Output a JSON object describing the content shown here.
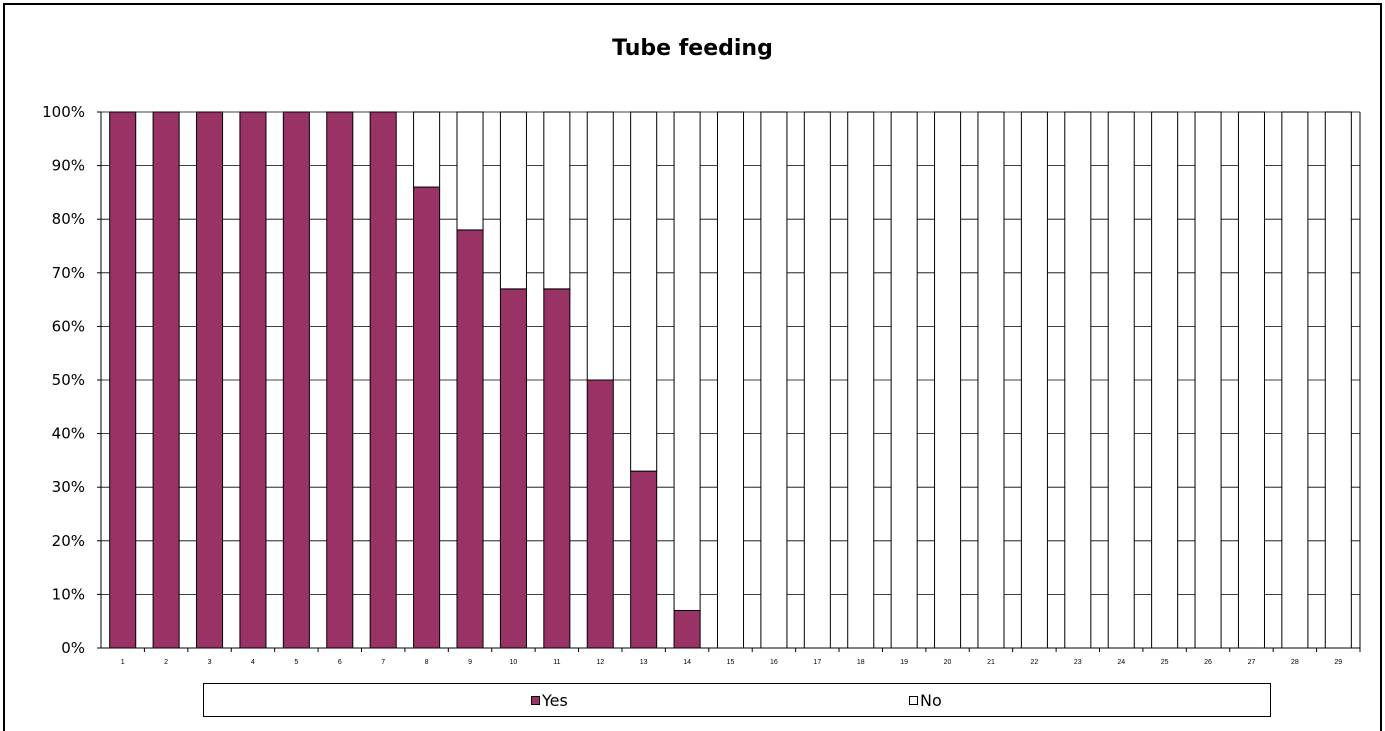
{
  "chart_data": {
    "type": "bar",
    "stacked": "percent",
    "title": "Tube feeding",
    "xlabel": "",
    "ylabel": "",
    "categories": [
      "1",
      "2",
      "3",
      "4",
      "5",
      "6",
      "7",
      "8",
      "9",
      "10",
      "11",
      "12",
      "13",
      "14",
      "15",
      "16",
      "17",
      "18",
      "19",
      "20",
      "21",
      "22",
      "23",
      "24",
      "25",
      "26",
      "27",
      "28",
      "29"
    ],
    "series": [
      {
        "name": "Yes",
        "color": "#993366",
        "values": [
          100,
          100,
          100,
          100,
          100,
          100,
          100,
          86,
          78,
          67,
          67,
          50,
          33,
          7,
          0,
          0,
          0,
          0,
          0,
          0,
          0,
          0,
          0,
          0,
          0,
          0,
          0,
          0,
          0
        ]
      },
      {
        "name": "No",
        "color": "#ffffff",
        "values": [
          0,
          0,
          0,
          0,
          0,
          0,
          0,
          14,
          22,
          33,
          33,
          50,
          67,
          93,
          100,
          100,
          100,
          100,
          100,
          100,
          100,
          100,
          100,
          100,
          100,
          100,
          100,
          100,
          100
        ]
      }
    ],
    "yticks": [
      "0%",
      "10%",
      "20%",
      "30%",
      "40%",
      "50%",
      "60%",
      "70%",
      "80%",
      "90%",
      "100%"
    ],
    "ylim": [
      0,
      100
    ],
    "grid": true,
    "legend_position": "bottom"
  }
}
